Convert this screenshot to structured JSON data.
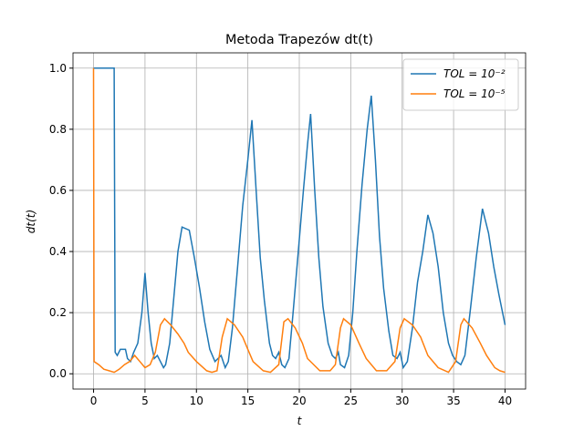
{
  "chart_data": {
    "type": "line",
    "title": "Metoda Trapezów dt(t)",
    "x_label": "t",
    "y_label": "dt(t)",
    "xlim": [
      -2,
      42
    ],
    "ylim": [
      -0.05,
      1.05
    ],
    "xticks": [
      0,
      5,
      10,
      15,
      20,
      25,
      30,
      35,
      40
    ],
    "yticks": [
      {
        "value": 0,
        "label": "0.0"
      },
      0.2,
      0.4,
      0.6,
      0.8,
      {
        "value": 1,
        "label": "1.0"
      }
    ],
    "grid": true,
    "legend": "upper right",
    "series": [
      {
        "name": "TOL = 10⁻²",
        "color": "#1f77b4",
        "x": [
          0,
          2,
          2.1,
          2.3,
          2.6,
          3.1,
          3.3,
          3.6,
          3.9,
          4.3,
          4.7,
          5.0,
          5.3,
          5.6,
          5.9,
          6.2,
          6.5,
          6.8,
          7.0,
          7.4,
          7.8,
          8.2,
          8.6,
          9.3,
          9.8,
          10.3,
          10.8,
          11.3,
          11.8,
          12.1,
          12.4,
          12.8,
          13.1,
          13.5,
          14.0,
          14.5,
          15.0,
          15.4,
          15.8,
          16.2,
          16.6,
          17.1,
          17.4,
          17.7,
          18.0,
          18.3,
          18.6,
          19.0,
          19.4,
          19.9,
          20.4,
          20.8,
          21.1,
          21.5,
          21.9,
          22.3,
          22.8,
          23.2,
          23.5,
          23.8,
          24.0,
          24.4,
          24.8,
          25.2,
          25.6,
          26.1,
          26.6,
          27.0,
          27.4,
          27.8,
          28.2,
          28.7,
          29.1,
          29.5,
          29.8,
          30.1,
          30.5,
          31.0,
          31.5,
          32.0,
          32.5,
          33.0,
          33.5,
          34.0,
          34.5,
          34.9,
          35.3,
          35.7,
          36.1,
          36.6,
          37.2,
          37.8,
          38.4,
          38.9,
          39.4,
          40
        ],
        "values": [
          1.0,
          1.0,
          0.07,
          0.06,
          0.08,
          0.08,
          0.05,
          0.04,
          0.07,
          0.1,
          0.2,
          0.33,
          0.2,
          0.1,
          0.05,
          0.06,
          0.04,
          0.02,
          0.03,
          0.1,
          0.25,
          0.4,
          0.48,
          0.47,
          0.38,
          0.28,
          0.17,
          0.08,
          0.04,
          0.05,
          0.06,
          0.02,
          0.04,
          0.15,
          0.35,
          0.55,
          0.7,
          0.83,
          0.6,
          0.38,
          0.24,
          0.1,
          0.06,
          0.05,
          0.07,
          0.03,
          0.02,
          0.05,
          0.2,
          0.4,
          0.6,
          0.75,
          0.85,
          0.6,
          0.38,
          0.22,
          0.1,
          0.06,
          0.05,
          0.07,
          0.03,
          0.02,
          0.06,
          0.2,
          0.4,
          0.62,
          0.8,
          0.91,
          0.7,
          0.45,
          0.28,
          0.14,
          0.06,
          0.05,
          0.07,
          0.02,
          0.04,
          0.15,
          0.3,
          0.4,
          0.52,
          0.46,
          0.35,
          0.2,
          0.1,
          0.06,
          0.04,
          0.03,
          0.06,
          0.2,
          0.38,
          0.54,
          0.46,
          0.35,
          0.26,
          0.16
        ]
      },
      {
        "name": "TOL = 10⁻⁵",
        "color": "#ff7f0e",
        "x": [
          0,
          0.05,
          0.5,
          1,
          1.5,
          2,
          2.5,
          3,
          3.5,
          4,
          4.5,
          5,
          5.5,
          6,
          6.5,
          6.9,
          7.5,
          8.2,
          8.8,
          9.2,
          10,
          11,
          11.5,
          12,
          12.5,
          13,
          13.7,
          14.5,
          15,
          15.5,
          16.5,
          17.2,
          18,
          18.5,
          18.9,
          19.6,
          20.3,
          20.8,
          22,
          23,
          23.5,
          24,
          24.3,
          25,
          25.8,
          26.5,
          27.5,
          28.5,
          29.3,
          29.8,
          30.2,
          31,
          31.8,
          32.5,
          33.5,
          34.5,
          35.2,
          35.7,
          36,
          36.8,
          37.6,
          38.2,
          39,
          39.5,
          40
        ],
        "values": [
          1.0,
          0.04,
          0.03,
          0.015,
          0.01,
          0.005,
          0.015,
          0.03,
          0.04,
          0.06,
          0.04,
          0.02,
          0.03,
          0.07,
          0.16,
          0.18,
          0.16,
          0.13,
          0.1,
          0.07,
          0.04,
          0.01,
          0.005,
          0.01,
          0.12,
          0.18,
          0.16,
          0.12,
          0.08,
          0.04,
          0.01,
          0.005,
          0.03,
          0.17,
          0.18,
          0.15,
          0.1,
          0.05,
          0.01,
          0.01,
          0.03,
          0.15,
          0.18,
          0.16,
          0.1,
          0.05,
          0.01,
          0.01,
          0.04,
          0.15,
          0.18,
          0.16,
          0.12,
          0.06,
          0.02,
          0.005,
          0.04,
          0.16,
          0.18,
          0.15,
          0.1,
          0.06,
          0.02,
          0.01,
          0.005
        ]
      }
    ]
  }
}
